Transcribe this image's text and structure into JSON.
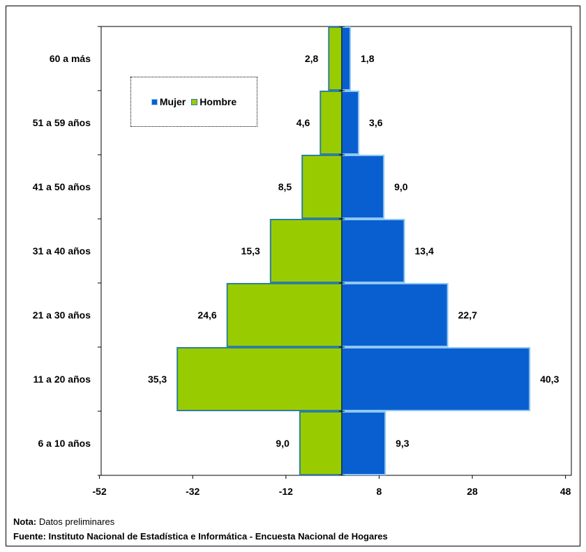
{
  "chart_data": {
    "type": "bar",
    "orientation": "horizontal",
    "subtype": "population-pyramid",
    "categories": [
      "6 a 10 años",
      "11 a 20 años",
      "21 a 30 años",
      "31 a 40 años",
      "41 a 50 años",
      "51 a 59 años",
      "60 a más"
    ],
    "series": [
      {
        "name": "Mujer",
        "values": [
          9.3,
          40.3,
          22.7,
          13.4,
          9.0,
          3.6,
          1.8
        ],
        "labels": [
          "9,3",
          "40,3",
          "22,7",
          "13,4",
          "9,0",
          "3,6",
          "1,8"
        ],
        "color": "#0a5fd0",
        "edge": "#8ec8f2"
      },
      {
        "name": "Hombre",
        "values": [
          9.0,
          35.3,
          24.6,
          15.3,
          8.5,
          4.6,
          2.8
        ],
        "labels": [
          "9,0",
          "35,3",
          "24,6",
          "15,3",
          "8,5",
          "4,6",
          "2,8"
        ],
        "color": "#99cc00",
        "edge": "#2f7f9c"
      }
    ],
    "xticks": [
      "-52",
      "-32",
      "-12",
      "8",
      "28",
      "48"
    ],
    "xtick_values": [
      -52,
      -32,
      -12,
      8,
      28,
      48
    ],
    "xlim": [
      -52,
      48
    ],
    "legend_position": "top-left",
    "grid": false
  },
  "footer": {
    "note_label": "Nota:",
    "note_text": " Datos preliminares",
    "source": "Fuente: Instituto Nacional de Estadística e Informática - Encuesta Nacional de Hogares"
  }
}
